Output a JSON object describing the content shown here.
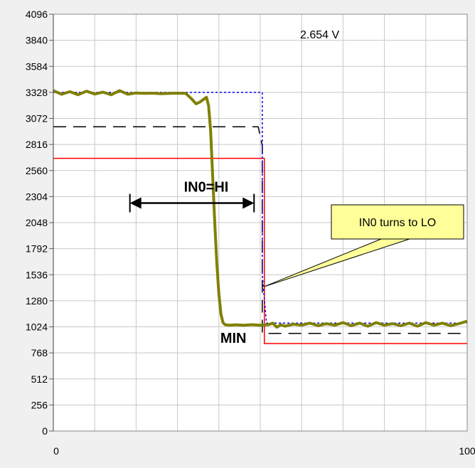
{
  "readout": "2.654  V",
  "chart_data": {
    "type": "line",
    "title": "",
    "xlabel": "",
    "ylabel": "",
    "xlim": [
      0,
      100
    ],
    "ylim": [
      0,
      4096
    ],
    "x_tick_labels": [
      "0",
      "100"
    ],
    "y_ticks": [
      0,
      256,
      512,
      768,
      1024,
      1280,
      1536,
      1792,
      2048,
      2304,
      2560,
      2816,
      3072,
      3328,
      3584,
      3840,
      4096
    ],
    "grid": true,
    "colors": {
      "signal": "#808000",
      "reference": "#0000ff",
      "threshold": "#000000",
      "limit": "#ff0000",
      "callout_fill": "#ffff99"
    },
    "series": [
      {
        "key": "signal",
        "x": [
          0,
          2,
          4,
          6,
          8,
          10,
          12,
          14,
          16,
          18,
          20,
          22,
          24,
          26,
          28,
          30,
          32,
          33.5,
          34.5,
          35.5,
          36.5,
          37,
          37.5,
          38,
          38.5,
          39,
          39.5,
          40,
          40.5,
          41,
          41.5,
          42.5,
          44,
          46,
          48,
          50,
          52,
          53,
          54,
          55,
          56,
          58,
          60,
          62,
          64,
          66,
          68,
          70,
          72,
          74,
          76,
          78,
          80,
          82,
          84,
          86,
          88,
          90,
          92,
          94,
          96,
          98,
          100
        ],
        "y": [
          3345,
          3310,
          3335,
          3305,
          3340,
          3312,
          3330,
          3305,
          3345,
          3310,
          3322,
          3318,
          3320,
          3315,
          3318,
          3320,
          3318,
          3260,
          3215,
          3235,
          3265,
          3280,
          3200,
          2950,
          2500,
          2050,
          1650,
          1350,
          1150,
          1065,
          1045,
          1040,
          1044,
          1040,
          1045,
          1040,
          1045,
          1060,
          1020,
          1045,
          1030,
          1050,
          1040,
          1060,
          1035,
          1055,
          1040,
          1065,
          1035,
          1060,
          1030,
          1065,
          1040,
          1055,
          1035,
          1060,
          1030,
          1065,
          1040,
          1060,
          1035,
          1055,
          1080
        ]
      },
      {
        "key": "reference",
        "x": [
          0,
          50.5,
          50.5,
          51.5,
          100
        ],
        "y": [
          3328,
          3328,
          1536,
          1060,
          1060
        ]
      },
      {
        "key": "threshold",
        "x": [
          0,
          49.5,
          50.5,
          50.5,
          100
        ],
        "y": [
          2990,
          2990,
          2800,
          960,
          960
        ]
      },
      {
        "key": "limit",
        "x": [
          0,
          50.5,
          51,
          51,
          100
        ],
        "y": [
          2680,
          2680,
          2680,
          860,
          860
        ]
      }
    ],
    "annotations": {
      "hi_label": "IN0=HI",
      "hi_arrow_x": [
        18.5,
        48.5
      ],
      "hi_arrow_y": 2240,
      "min_label": "MIN",
      "min_label_x": 43.5,
      "min_label_y": 865,
      "callout_text": "IN0 turns to LO",
      "callout_tip": [
        51,
        1420
      ]
    }
  }
}
